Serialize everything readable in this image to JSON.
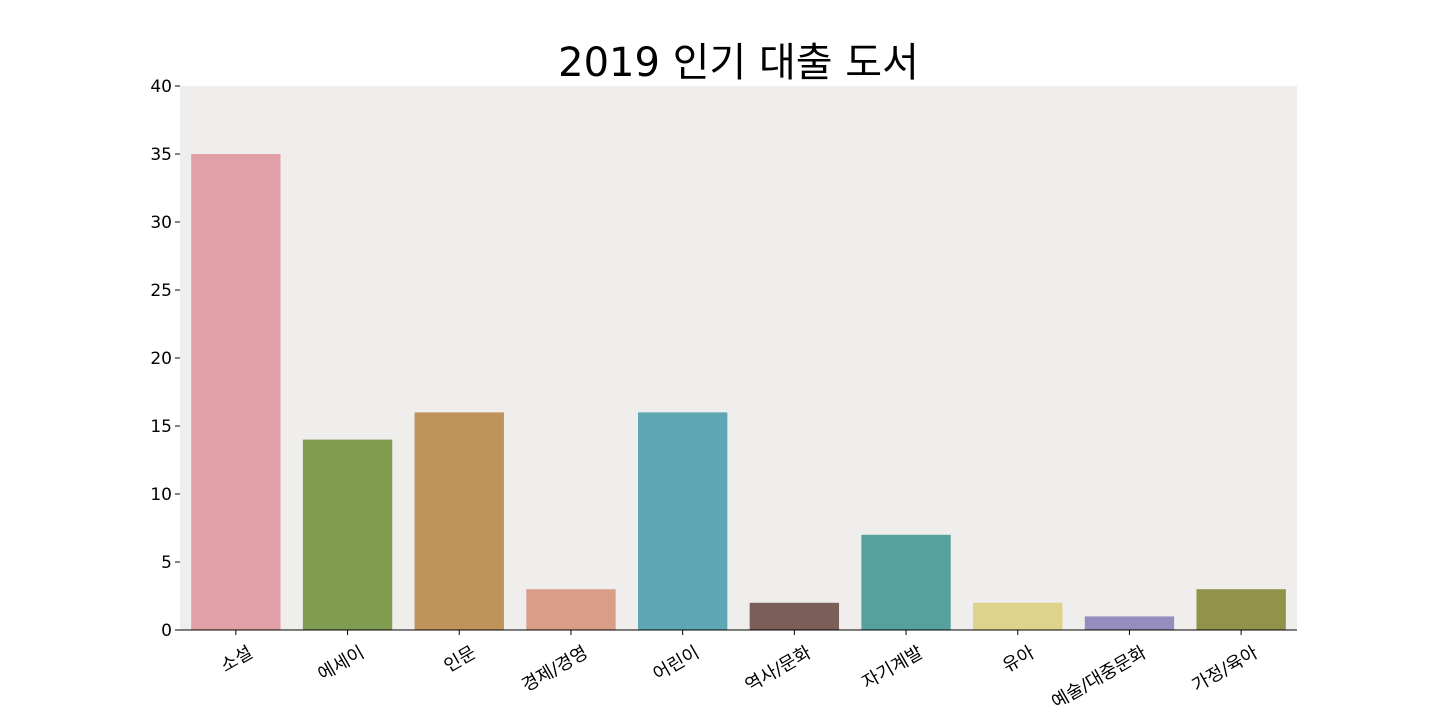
{
  "chart_data": {
    "type": "bar",
    "title": "2019 인기 대출 도서",
    "xlabel": "",
    "ylabel": "",
    "categories": [
      "소설",
      "에세이",
      "인문",
      "경제/경영",
      "어린이",
      "역사/문화",
      "자기계발",
      "유아",
      "예술/대중문화",
      "가정/육아"
    ],
    "values": [
      35,
      14,
      16,
      3,
      16,
      2,
      7,
      2,
      1,
      3
    ],
    "colors": [
      "#e1a0a8",
      "#809c51",
      "#bf9359",
      "#d99d88",
      "#5ea6b2",
      "#7b5e58",
      "#56a09e",
      "#dfd28b",
      "#958dbd",
      "#909349"
    ],
    "ylim": [
      0,
      40
    ],
    "yticks": [
      0,
      5,
      10,
      15,
      20,
      25,
      30,
      35,
      40
    ],
    "plot_background": "#efeeec",
    "grid": false,
    "legend": "none"
  }
}
